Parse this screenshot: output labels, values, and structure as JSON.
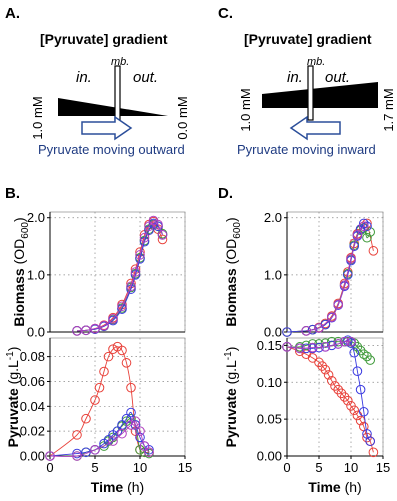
{
  "panels": {
    "A": {
      "label": "A.",
      "title": "[Pyruvate] gradient",
      "mb_label": "mb.",
      "in_label": "in.",
      "out_label": "out.",
      "left_conc": "1.0 mM",
      "right_conc": "0.0 mM",
      "caption": "Pyruvate moving outward"
    },
    "C": {
      "label": "C.",
      "title": "[Pyruvate] gradient",
      "mb_label": "mb.",
      "in_label": "in.",
      "out_label": "out.",
      "left_conc": "1.0 mM",
      "right_conc": "1.7 mM",
      "caption": "Pyruvate moving inward"
    },
    "B": {
      "label": "B."
    },
    "D": {
      "label": "D."
    }
  },
  "colors": {
    "caption": "#1f3b82",
    "arrow": "#2b4e9a",
    "red": "#e8413a",
    "green": "#3f9a3a",
    "blue": "#3a3ae0",
    "purple": "#b040c0"
  },
  "chart_data": [
    {
      "id": "B-biomass",
      "type": "scatter",
      "xlabel": "",
      "ylabel": "Biomass (OD600)",
      "ylabel_main": "Biomass (OD",
      "ylabel_sub": "600",
      "ylabel_close": ")",
      "xlim": [
        0,
        15
      ],
      "ylim": [
        0,
        2.1
      ],
      "yticks": [
        0.0,
        1.0,
        2.0
      ],
      "ytick_labels": [
        "0.0",
        "1.0",
        "2.0"
      ],
      "grid": true,
      "series": [
        {
          "color": "red",
          "x": [
            3,
            4,
            5,
            6,
            7,
            8,
            9,
            9.5,
            10,
            10.5,
            11,
            11.5,
            12,
            12.5
          ],
          "y": [
            0.02,
            0.03,
            0.06,
            0.12,
            0.25,
            0.48,
            0.85,
            1.1,
            1.4,
            1.7,
            1.88,
            1.93,
            1.8,
            1.62
          ]
        },
        {
          "color": "green",
          "x": [
            3,
            4,
            5,
            6,
            7,
            8,
            9,
            9.5,
            10,
            10.5,
            11,
            11.5,
            12,
            12.5
          ],
          "y": [
            0.02,
            0.03,
            0.05,
            0.1,
            0.22,
            0.42,
            0.78,
            1.02,
            1.3,
            1.6,
            1.8,
            1.88,
            1.85,
            1.72
          ]
        },
        {
          "color": "blue",
          "x": [
            3,
            4,
            5,
            6,
            7,
            8,
            9,
            9.5,
            10,
            10.5,
            11,
            11.5,
            12,
            12.5
          ],
          "y": [
            0.02,
            0.03,
            0.05,
            0.1,
            0.2,
            0.4,
            0.75,
            1.0,
            1.28,
            1.58,
            1.78,
            1.9,
            1.85,
            1.7
          ]
        },
        {
          "color": "purple",
          "x": [
            3,
            4,
            5,
            6,
            7,
            8,
            9,
            9.5,
            10,
            10.5,
            11,
            11.5,
            12,
            12.5
          ],
          "y": [
            0.02,
            0.03,
            0.06,
            0.11,
            0.23,
            0.45,
            0.8,
            1.05,
            1.35,
            1.65,
            1.85,
            1.95,
            1.88,
            1.7
          ]
        }
      ]
    },
    {
      "id": "B-pyruvate",
      "type": "scatter",
      "xlabel": "Time (h)",
      "ylabel": "Pyruvate (g.L-1)",
      "ylabel_main": "Pyruvate (g.L",
      "ylabel_sup": "-1",
      "ylabel_close": ")",
      "xlim": [
        0,
        15
      ],
      "ylim": [
        0,
        0.095
      ],
      "xticks": [
        0,
        5,
        10,
        15
      ],
      "xtick_labels": [
        "0",
        "5",
        "10",
        "15"
      ],
      "yticks": [
        0.0,
        0.02,
        0.04,
        0.06,
        0.08
      ],
      "ytick_labels": [
        "0.00",
        "0.02",
        "0.04",
        "0.06",
        "0.08"
      ],
      "grid": true,
      "series": [
        {
          "color": "red",
          "x": [
            0,
            3,
            4,
            5,
            5.5,
            6,
            6.5,
            7,
            7.5,
            8,
            8.5,
            9,
            9.5,
            10,
            10.5,
            11
          ],
          "y": [
            0.0,
            0.017,
            0.03,
            0.045,
            0.055,
            0.068,
            0.08,
            0.086,
            0.088,
            0.085,
            0.075,
            0.055,
            0.02,
            0.005,
            0.003,
            0.003
          ]
        },
        {
          "color": "green",
          "x": [
            0,
            3,
            4,
            5,
            6,
            6.5,
            7,
            7.5,
            8,
            8.5,
            9,
            9.5,
            10,
            10.5,
            11
          ],
          "y": [
            0.0,
            0.0,
            0.003,
            0.005,
            0.008,
            0.012,
            0.015,
            0.02,
            0.024,
            0.028,
            0.03,
            0.025,
            0.005,
            0.003,
            0.002
          ]
        },
        {
          "color": "blue",
          "x": [
            0,
            3,
            4,
            5,
            6,
            6.5,
            7,
            7.5,
            8,
            8.5,
            9,
            9.5,
            10,
            10.5,
            11
          ],
          "y": [
            0.0,
            0.002,
            0.003,
            0.005,
            0.01,
            0.013,
            0.017,
            0.02,
            0.025,
            0.03,
            0.035,
            0.025,
            0.015,
            0.008,
            0.005
          ]
        },
        {
          "color": "purple",
          "x": [
            0,
            3,
            5,
            7,
            8,
            9,
            9.5,
            10,
            10.5,
            11
          ],
          "y": [
            0.0,
            0.0,
            0.005,
            0.012,
            0.018,
            0.025,
            0.028,
            0.02,
            0.008,
            0.003
          ]
        }
      ]
    },
    {
      "id": "D-biomass",
      "type": "scatter",
      "xlabel": "",
      "ylabel": "Biomass (OD600)",
      "ylabel_main": "Biomass (OD",
      "ylabel_sub": "600",
      "ylabel_close": ")",
      "xlim": [
        0,
        15
      ],
      "ylim": [
        0,
        2.1
      ],
      "yticks": [
        0.0,
        1.0,
        2.0
      ],
      "ytick_labels": [
        "0.0",
        "1.0",
        "2.0"
      ],
      "grid": true,
      "series": [
        {
          "color": "red",
          "x": [
            0,
            3,
            4,
            5,
            6,
            7,
            8,
            9,
            9.5,
            10,
            10.5,
            11,
            11.5,
            12,
            12.5,
            13.5
          ],
          "y": [
            0.0,
            0.02,
            0.04,
            0.08,
            0.15,
            0.28,
            0.5,
            0.85,
            1.05,
            1.3,
            1.55,
            1.72,
            1.8,
            1.85,
            1.9,
            1.42
          ]
        },
        {
          "color": "green",
          "x": [
            0,
            3,
            4,
            5,
            6,
            7,
            8,
            9,
            9.5,
            10,
            10.5,
            11,
            11.5,
            12,
            12.5,
            13
          ],
          "y": [
            0.0,
            0.02,
            0.04,
            0.07,
            0.13,
            0.26,
            0.48,
            0.82,
            1.02,
            1.27,
            1.52,
            1.7,
            1.78,
            1.82,
            1.65,
            1.75
          ]
        },
        {
          "color": "blue",
          "x": [
            0,
            3,
            4,
            5,
            6,
            7,
            8,
            9,
            9.5,
            10,
            10.5,
            11,
            11.5,
            12,
            12.5
          ],
          "y": [
            0.0,
            0.02,
            0.04,
            0.07,
            0.13,
            0.25,
            0.47,
            0.8,
            1.0,
            1.25,
            1.5,
            1.68,
            1.8,
            1.9,
            1.85
          ]
        },
        {
          "color": "purple",
          "x": [
            3,
            5,
            7,
            8,
            9,
            10,
            11,
            12
          ],
          "y": [
            0.02,
            0.07,
            0.26,
            0.48,
            0.82,
            1.28,
            1.7,
            1.85
          ]
        }
      ]
    },
    {
      "id": "D-pyruvate",
      "type": "scatter",
      "xlabel": "Time (h)",
      "ylabel": "Pyruvate (g.L-1)",
      "ylabel_main": "Pyruvate (g.L",
      "ylabel_sup": "-1",
      "ylabel_close": ")",
      "xlim": [
        0,
        15
      ],
      "ylim": [
        0,
        0.16
      ],
      "xticks": [
        0,
        5,
        10,
        15
      ],
      "xtick_labels": [
        "0",
        "5",
        "10",
        "15"
      ],
      "yticks": [
        0.0,
        0.05,
        0.1,
        0.15
      ],
      "ytick_labels": [
        "0.00",
        "0.05",
        "0.10",
        "0.15"
      ],
      "grid": true,
      "series": [
        {
          "color": "red",
          "x": [
            0,
            2,
            3,
            4,
            5,
            5.5,
            6,
            6.5,
            7,
            7.5,
            8,
            8.5,
            9,
            9.5,
            10,
            10.5,
            11,
            11.5,
            12,
            12.5,
            13,
            13.5
          ],
          "y": [
            0.148,
            0.142,
            0.138,
            0.133,
            0.127,
            0.122,
            0.117,
            0.11,
            0.102,
            0.095,
            0.09,
            0.085,
            0.08,
            0.075,
            0.068,
            0.062,
            0.055,
            0.048,
            0.04,
            0.025,
            0.02,
            0.005
          ]
        },
        {
          "color": "green",
          "x": [
            0,
            2,
            3,
            4,
            5,
            6,
            7,
            8,
            9,
            9.5,
            10,
            10.5,
            11,
            11.5,
            12,
            12.5,
            13
          ],
          "y": [
            0.148,
            0.148,
            0.15,
            0.152,
            0.152,
            0.153,
            0.155,
            0.155,
            0.155,
            0.155,
            0.155,
            0.153,
            0.148,
            0.143,
            0.138,
            0.135,
            0.13
          ]
        },
        {
          "color": "blue",
          "x": [
            0,
            2,
            3,
            4,
            5,
            6,
            7,
            8,
            9,
            9.5,
            10,
            10.5,
            11,
            11.5,
            12,
            12.5,
            13
          ],
          "y": [
            0.148,
            0.146,
            0.146,
            0.146,
            0.147,
            0.148,
            0.15,
            0.152,
            0.155,
            0.157,
            0.153,
            0.14,
            0.115,
            0.09,
            0.06,
            0.03,
            0.02
          ]
        },
        {
          "color": "purple",
          "x": [
            0,
            2,
            4,
            6,
            8,
            9,
            10
          ],
          "y": [
            0.148,
            0.146,
            0.147,
            0.148,
            0.152,
            0.155,
            0.155
          ]
        }
      ]
    }
  ]
}
